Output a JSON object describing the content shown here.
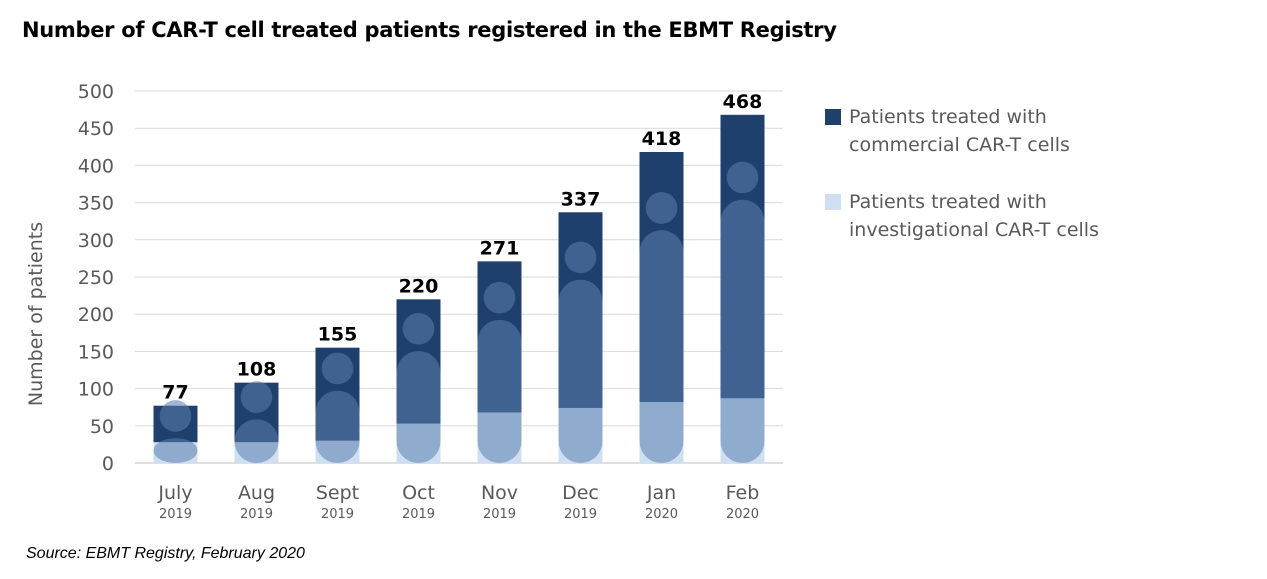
{
  "title": "Number of CAR-T cell treated patients registered in the EBMT Registry",
  "source": "Source: EBMT Registry, February 2020",
  "colors": {
    "commercial": "#1f3f6c",
    "investigational": "#cfdff2",
    "figure_overlay": "#5b7fb0",
    "gridline": "#d9d9d9",
    "axis_text": "#595959"
  },
  "chart_data": {
    "type": "bar",
    "stacked": true,
    "categories": [
      "July",
      "Aug",
      "Sept",
      "Oct",
      "Nov",
      "Dec",
      "Jan",
      "Feb"
    ],
    "years": [
      "2019",
      "2019",
      "2019",
      "2019",
      "2019",
      "2019",
      "2020",
      "2020"
    ],
    "series": [
      {
        "name": "Patients treated with investigational CAR-T cells",
        "values": [
          28,
          28,
          30,
          53,
          68,
          74,
          82,
          87
        ]
      },
      {
        "name": "Patients treated with commercial CAR-T cells",
        "values": [
          49,
          80,
          125,
          167,
          203,
          263,
          336,
          381
        ]
      }
    ],
    "totals": [
      77,
      108,
      155,
      220,
      271,
      337,
      418,
      468
    ],
    "ylabel": "Number of patients",
    "xlabel": "",
    "ylim": [
      0,
      500
    ],
    "yticks": [
      0,
      50,
      100,
      150,
      200,
      250,
      300,
      350,
      400,
      450,
      500
    ],
    "grid": true,
    "legend_position": "right"
  }
}
